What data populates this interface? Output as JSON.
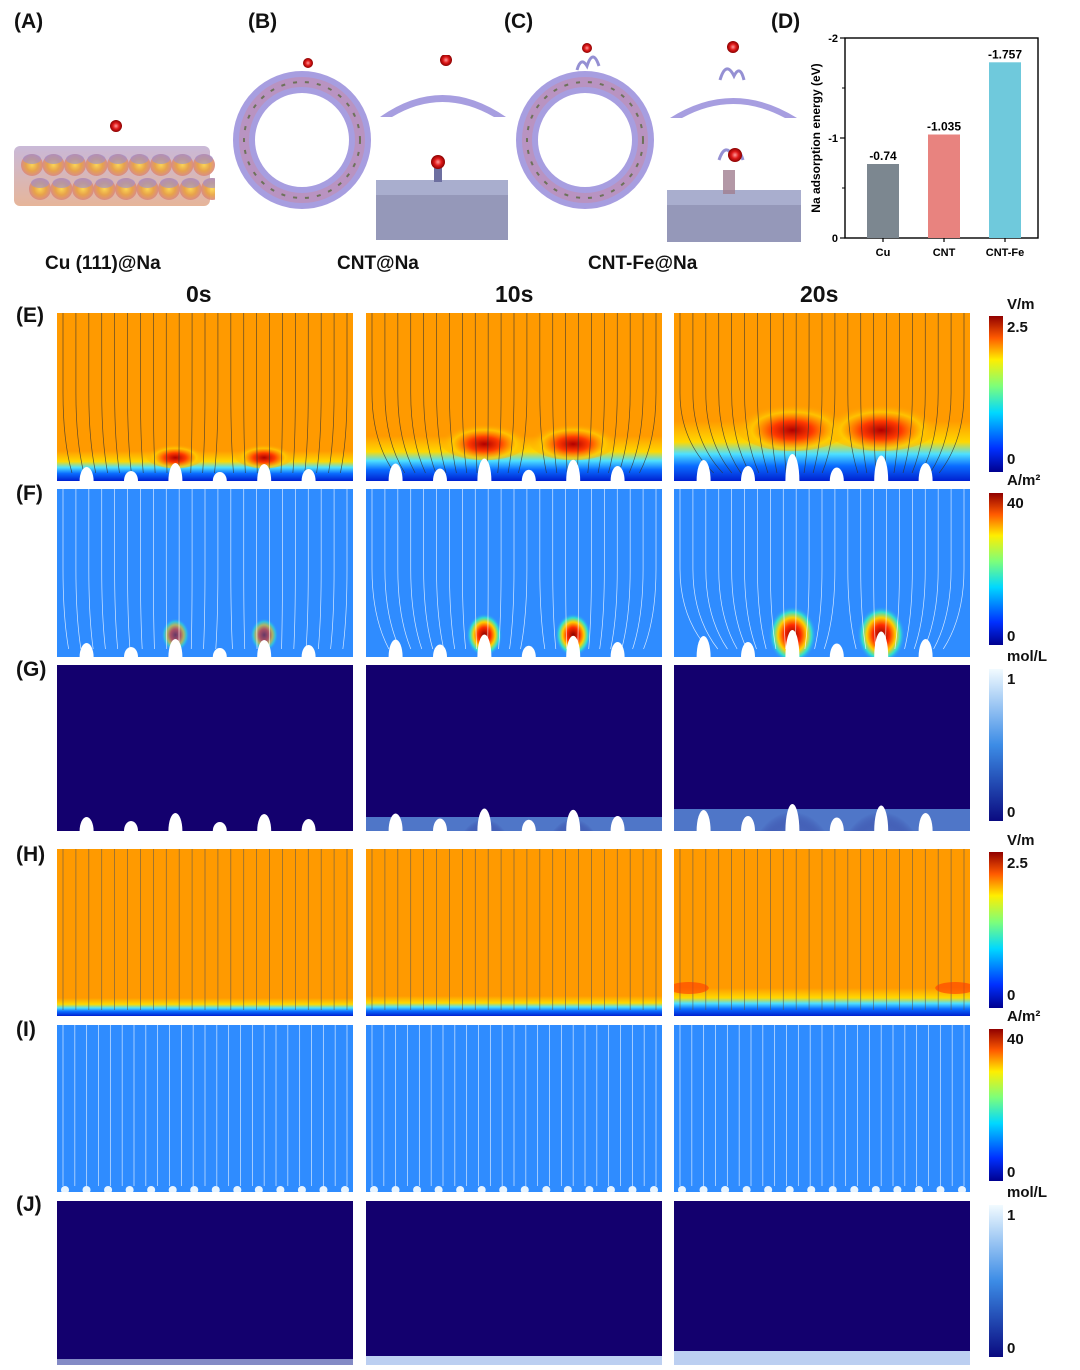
{
  "panels": {
    "A": "(A)",
    "B": "(B)",
    "C": "(C)",
    "D": "(D)",
    "E": "(E)",
    "F": "(F)",
    "G": "(G)",
    "H": "(H)",
    "I": "(I)",
    "J": "(J)"
  },
  "captions": {
    "cu": "Cu (111)@Na",
    "cnt": "CNT@Na",
    "cntfe": "CNT-Fe@Na"
  },
  "time_labels": [
    "0s",
    "10s",
    "20s"
  ],
  "colorbars": {
    "efield": {
      "unit": "V/m",
      "max": "2.5",
      "min": "0"
    },
    "current": {
      "unit": "A/m²",
      "max": "40",
      "min": "0"
    },
    "conc": {
      "unit": "mol/L",
      "max": "1",
      "min": "0"
    }
  },
  "colors": {
    "field_orange": "#ff9a00",
    "current_blue": "#2f8cff",
    "conc_dark": "#13006e",
    "bar_cu": "#7c8790",
    "bar_cnt": "#e8837f",
    "bar_cntfe": "#6fc9dc"
  },
  "chart_data": {
    "type": "bar",
    "categories": [
      "Cu",
      "CNT",
      "CNT-Fe"
    ],
    "values": [
      -0.74,
      -1.035,
      -1.757
    ],
    "value_labels": [
      "-0.74",
      "-1.035",
      "-1.757"
    ],
    "ylabel": "Na adsorption energy (eV)",
    "ylim": [
      0,
      -2
    ],
    "yticks": [
      "0",
      "-1",
      "-2"
    ],
    "grid": false
  }
}
